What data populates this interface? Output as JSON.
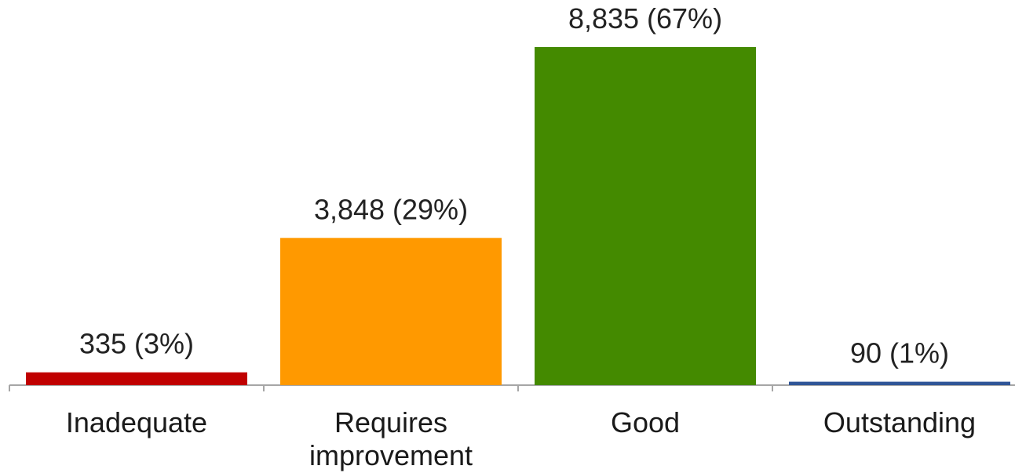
{
  "chart_data": {
    "type": "bar",
    "categories": [
      [
        "Inadequate"
      ],
      [
        "Requires",
        "improvement"
      ],
      [
        "Good"
      ],
      [
        "Outstanding"
      ]
    ],
    "values": [
      335,
      3848,
      8835,
      90
    ],
    "data_labels": [
      "335 (3%)",
      "3,848 (29%)",
      "8,835 (67%)",
      "90 (1%)"
    ],
    "colors": [
      "#C00000",
      "#FF9900",
      "#448A00",
      "#2F5597"
    ],
    "title": "",
    "xlabel": "",
    "ylabel": "",
    "grid": false,
    "legend": "none"
  }
}
